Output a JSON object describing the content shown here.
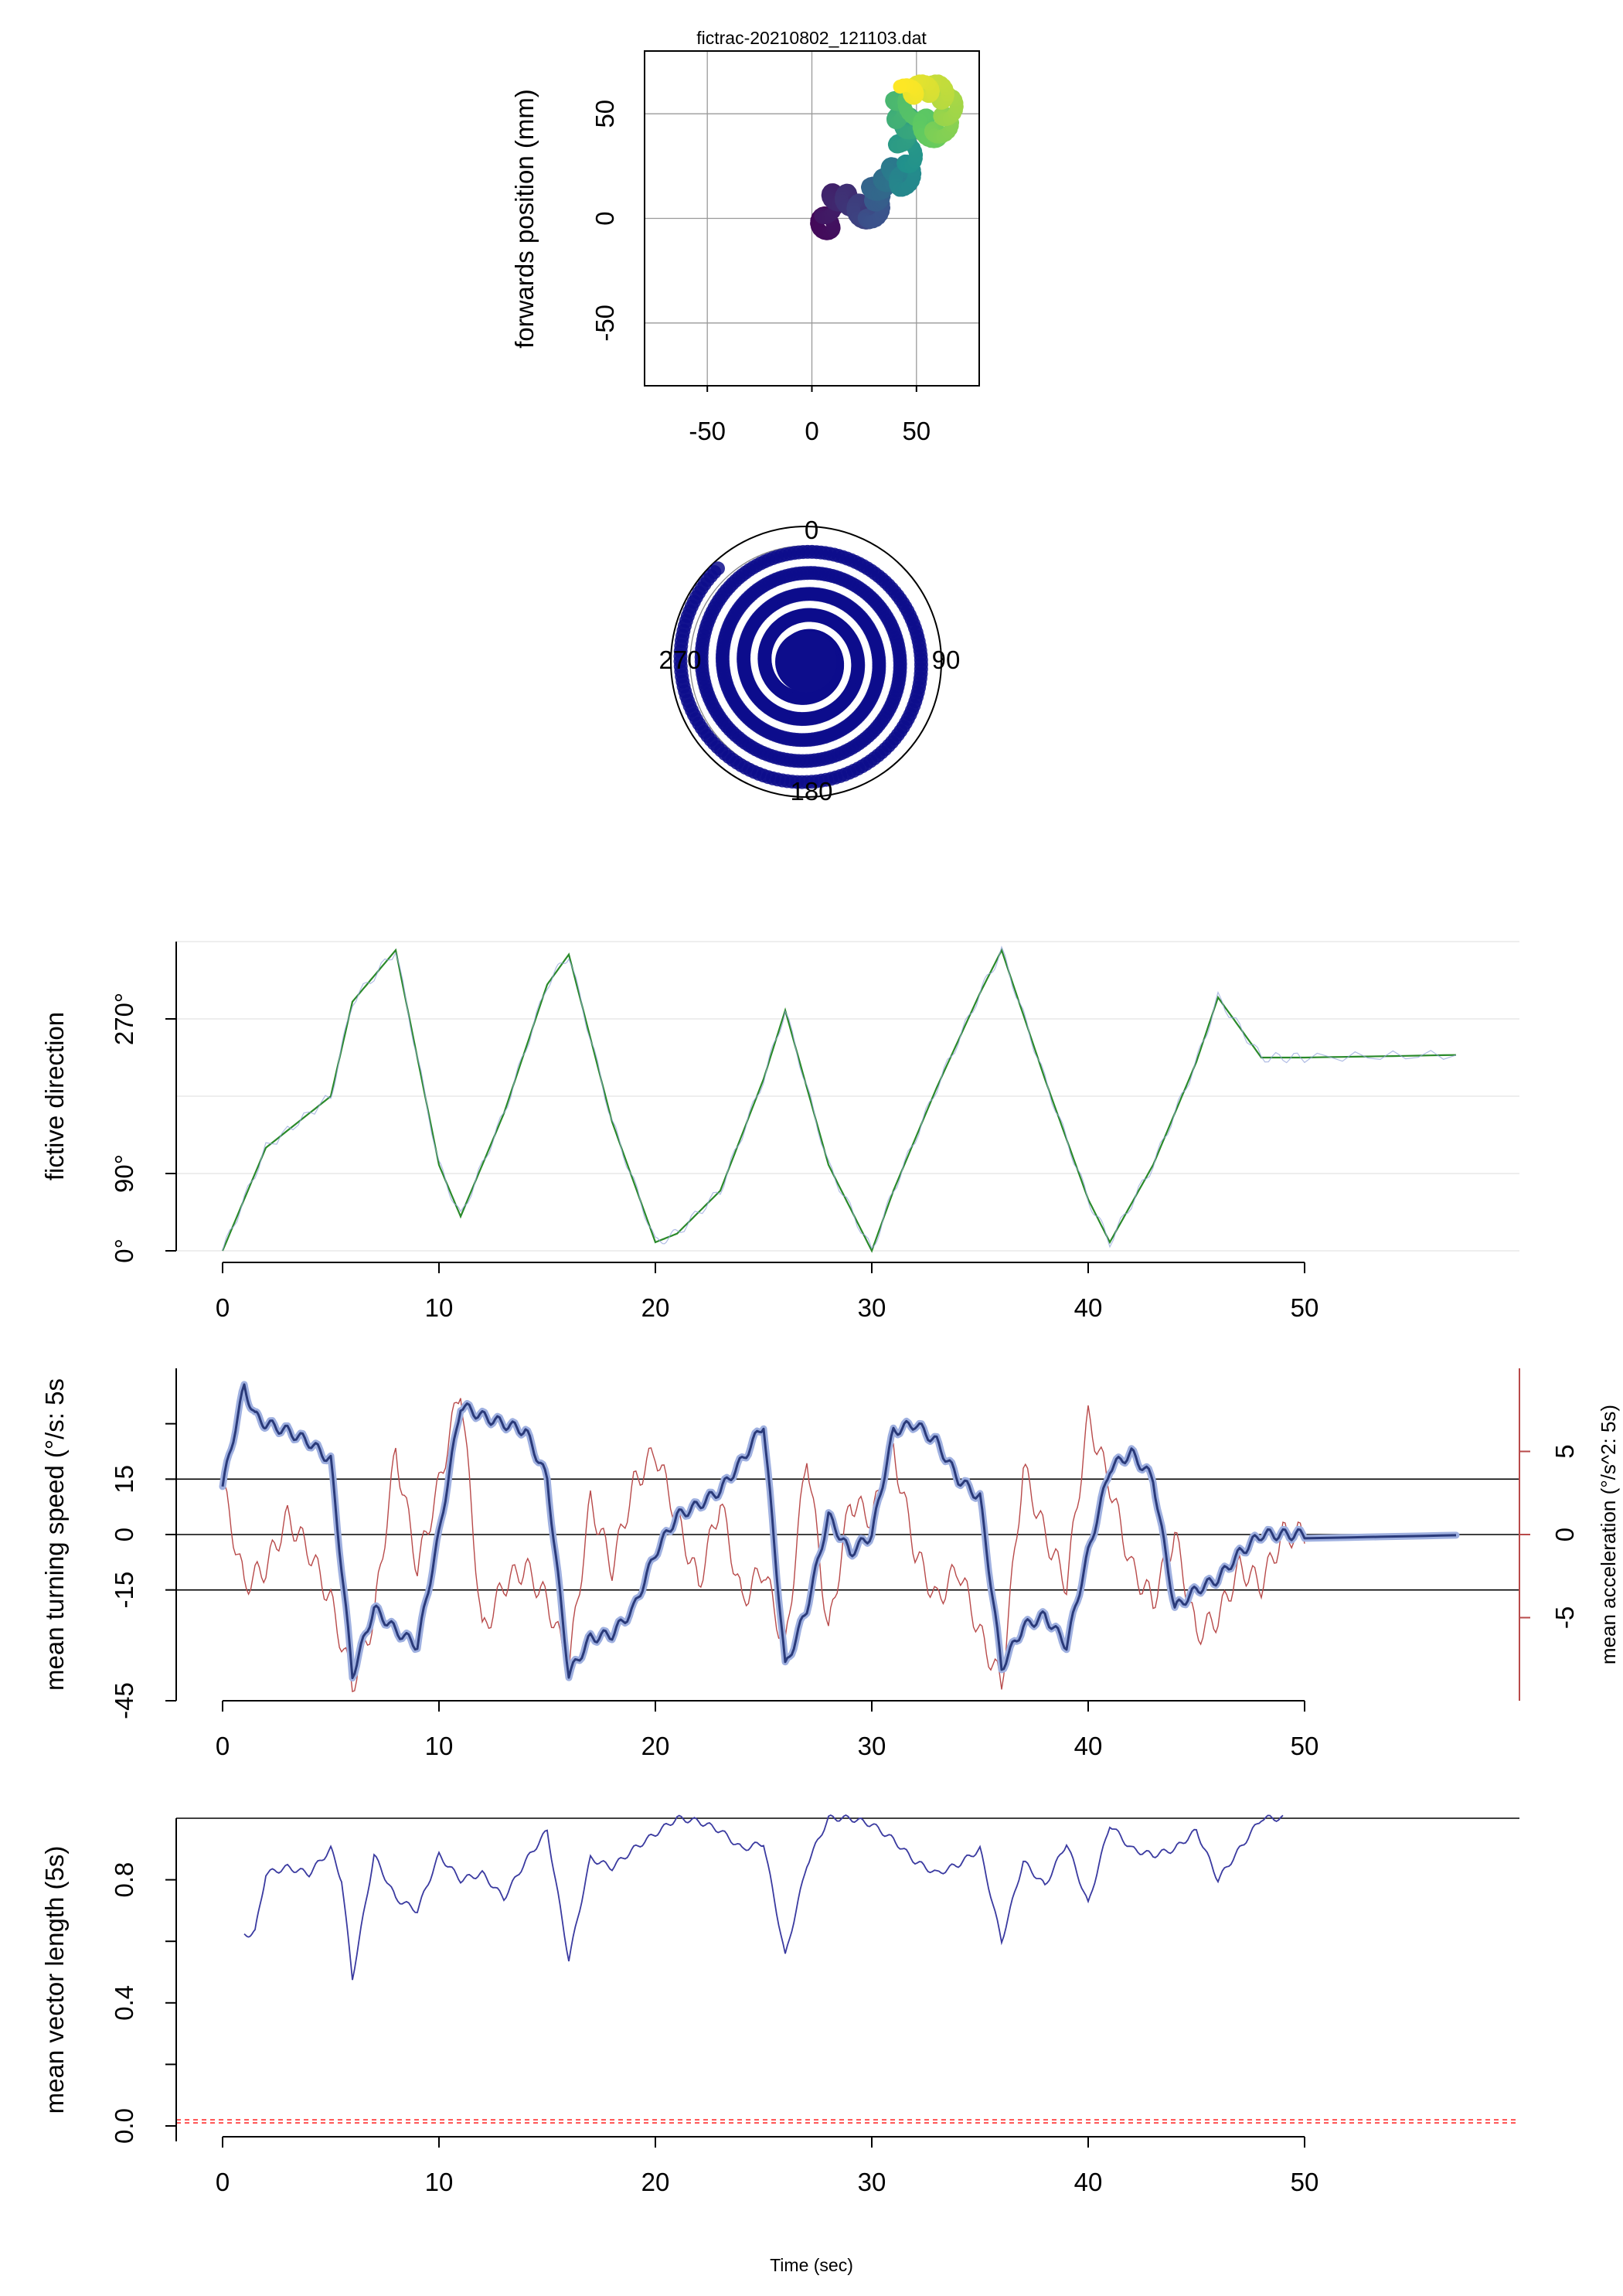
{
  "chart_data": [
    {
      "type": "scatter",
      "title": "fictrac-20210802_121103.dat",
      "xlabel": "",
      "ylabel": "forwards position (mm)",
      "xlim": [
        -80,
        80
      ],
      "ylim": [
        -80,
        80
      ],
      "x_ticks": [
        "-50",
        "0",
        "50"
      ],
      "y_ticks": [
        "-50",
        "0",
        "50"
      ],
      "grid": true,
      "color_scale": "viridis (time)",
      "trajectory_anchors": [
        [
          5,
          0
        ],
        [
          7,
          -5
        ],
        [
          9,
          10
        ],
        [
          16,
          10
        ],
        [
          22,
          5
        ],
        [
          28,
          -2
        ],
        [
          32,
          8
        ],
        [
          30,
          14
        ],
        [
          36,
          18
        ],
        [
          40,
          24
        ],
        [
          44,
          16
        ],
        [
          48,
          28
        ],
        [
          42,
          38
        ],
        [
          48,
          45
        ],
        [
          40,
          50
        ],
        [
          43,
          60
        ],
        [
          52,
          48
        ],
        [
          58,
          38
        ],
        [
          64,
          45
        ],
        [
          66,
          55
        ],
        [
          60,
          62
        ],
        [
          52,
          62
        ],
        [
          44,
          60
        ]
      ]
    },
    {
      "type": "scatter",
      "subtype": "polar",
      "angle_labels": [
        "0",
        "90",
        "180",
        "270"
      ],
      "color": "#0d0d8c"
    },
    {
      "type": "line",
      "ylabel": "fictive direction",
      "y_ticks": [
        "0°",
        "90°",
        "270°"
      ],
      "xlim": [
        0,
        60
      ],
      "ylim": [
        0,
        360
      ],
      "x_ticks": [
        "0",
        "10",
        "20",
        "30",
        "40",
        "50"
      ],
      "series": [
        {
          "color": "#2a8a2a",
          "x": [
            0,
            2,
            5,
            6,
            8,
            10,
            11,
            13,
            15,
            16,
            18,
            20,
            21,
            23,
            25,
            26,
            28,
            30,
            31,
            33,
            35,
            36,
            38,
            40,
            41,
            43,
            45,
            46,
            48,
            50,
            57
          ],
          "y": [
            0,
            120,
            180,
            290,
            350,
            100,
            40,
            160,
            310,
            345,
            150,
            10,
            20,
            70,
            200,
            280,
            100,
            0,
            70,
            190,
            300,
            350,
            200,
            60,
            10,
            100,
            220,
            295,
            225,
            225,
            228
          ]
        }
      ]
    },
    {
      "type": "line",
      "ylabel": "mean turning speed (°/s: 5s",
      "y2label": "mean acceleration (°/s^2: 5s)",
      "y_ticks": [
        "-45",
        "-15",
        "0",
        "15"
      ],
      "y2_ticks": [
        "-5",
        "0",
        "5"
      ],
      "xlim": [
        0,
        60
      ],
      "ylim": [
        -45,
        45
      ],
      "y2lim": [
        -10,
        10
      ],
      "x_ticks": [
        "0",
        "10",
        "20",
        "30",
        "40",
        "50"
      ],
      "hlines": [
        15,
        0,
        -15
      ],
      "series": [
        {
          "name": "",
          "color": "#3a4a9a",
          "x": [
            0,
            1,
            1.5,
            2,
            3,
            4,
            5,
            6,
            7,
            8,
            9,
            10,
            11,
            12,
            13,
            14,
            15,
            16,
            17,
            18,
            19,
            20,
            21,
            22,
            23,
            24,
            25,
            26,
            27,
            28,
            29,
            30,
            31,
            32,
            33,
            34,
            35,
            36,
            37,
            38,
            39,
            40,
            41,
            42,
            43,
            44,
            45,
            46,
            47,
            48,
            49,
            50,
            57
          ],
          "y": [
            13,
            40,
            32,
            30,
            28,
            25,
            20,
            -38,
            -20,
            -26,
            -30,
            0,
            35,
            32,
            30,
            28,
            15,
            -38,
            -28,
            -27,
            -20,
            -5,
            5,
            8,
            12,
            20,
            30,
            -36,
            -20,
            5,
            -5,
            0,
            28,
            30,
            25,
            15,
            10,
            -36,
            -25,
            -22,
            -30,
            -5,
            18,
            22,
            15,
            -20,
            -15,
            -12,
            -5,
            0,
            0,
            0,
            1
          ]
        },
        {
          "name": "",
          "color": "#b84a4a",
          "axis": "y2",
          "x": [
            0,
            1,
            2,
            3,
            4,
            5,
            6,
            7,
            8,
            9,
            10,
            11,
            12,
            13,
            14,
            15,
            16,
            17,
            18,
            19,
            20,
            21,
            22,
            23,
            24,
            25,
            26,
            27,
            28,
            29,
            30,
            31,
            32,
            33,
            34,
            35,
            36,
            37,
            38,
            39,
            40,
            41,
            42,
            43,
            44,
            45,
            46,
            47,
            48,
            49,
            50
          ],
          "y": [
            3,
            -3,
            -2,
            1,
            -1,
            -4,
            -9,
            -5,
            5,
            -2,
            3,
            9,
            -6,
            -3,
            -2,
            -4,
            -8,
            2,
            -2,
            3,
            5,
            1,
            -3,
            2,
            -4,
            -2,
            -7,
            5,
            -6,
            2,
            1,
            5,
            -1,
            -4,
            -2,
            -6,
            -9,
            4,
            0,
            -3,
            7,
            3,
            -2,
            -4,
            0,
            -6,
            -5,
            -2,
            -3,
            0,
            0
          ]
        }
      ]
    },
    {
      "type": "line",
      "ylabel": "mean vector length (5s)",
      "xlabel": "Time (sec)",
      "y_ticks": [
        "0.0",
        "0.4",
        "0.8"
      ],
      "xlim": [
        0,
        60
      ],
      "ylim": [
        0,
        1
      ],
      "x_ticks": [
        "0",
        "10",
        "20",
        "30",
        "40",
        "50"
      ],
      "hline_color": "#ff3030",
      "hline_value": 0.02,
      "series": [
        {
          "color": "#3a3aa0",
          "x": [
            1,
            1.5,
            2,
            3,
            4,
            5,
            5.5,
            6,
            7,
            8,
            9,
            10,
            11,
            12,
            13,
            14,
            15,
            16,
            17,
            18,
            19,
            20,
            21,
            22,
            23,
            24,
            25,
            26,
            27,
            28,
            29,
            30,
            31,
            32,
            33,
            34,
            35,
            36,
            37,
            38,
            39,
            40,
            41,
            42,
            43,
            44,
            45,
            46,
            47,
            48,
            49
          ],
          "y": [
            0.62,
            0.63,
            0.82,
            0.84,
            0.82,
            0.9,
            0.8,
            0.48,
            0.88,
            0.74,
            0.7,
            0.88,
            0.8,
            0.82,
            0.74,
            0.86,
            0.96,
            0.54,
            0.87,
            0.84,
            0.9,
            0.95,
            1.0,
            0.99,
            0.96,
            0.9,
            0.92,
            0.55,
            0.85,
            1.0,
            1.0,
            0.98,
            0.93,
            0.86,
            0.82,
            0.85,
            0.9,
            0.6,
            0.86,
            0.78,
            0.92,
            0.72,
            0.98,
            0.9,
            0.88,
            0.9,
            0.96,
            0.8,
            0.9,
            1.0,
            1.0
          ]
        }
      ]
    }
  ]
}
